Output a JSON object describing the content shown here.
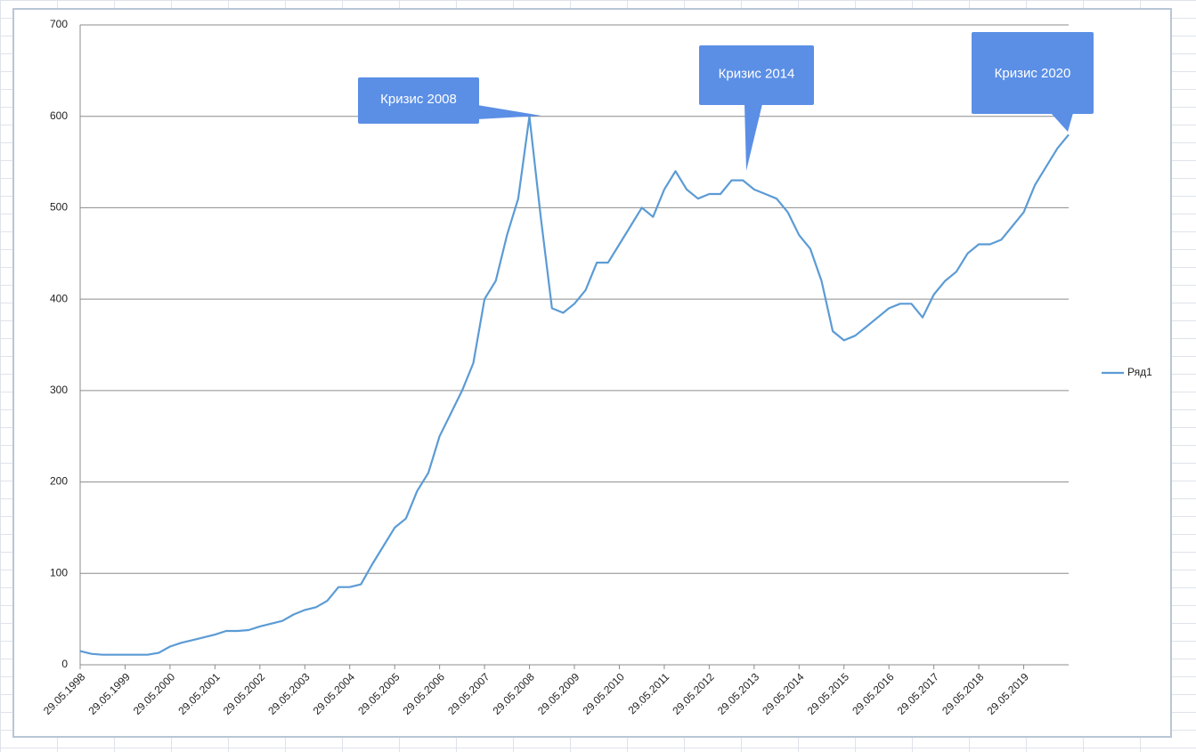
{
  "chart_data": {
    "type": "line",
    "categories": [
      "29.05.1998",
      null,
      null,
      null,
      "29.05.1999",
      null,
      null,
      null,
      "29.05.2000",
      null,
      null,
      null,
      "29.05.2001",
      null,
      null,
      null,
      "29.05.2002",
      null,
      null,
      null,
      "29.05.2003",
      null,
      null,
      null,
      "29.05.2004",
      null,
      null,
      null,
      "29.05.2005",
      null,
      null,
      null,
      "29.05.2006",
      null,
      null,
      null,
      "29.05.2007",
      null,
      null,
      null,
      "29.05.2008",
      null,
      null,
      null,
      "29.05.2009",
      null,
      null,
      null,
      "29.05.2010",
      null,
      null,
      null,
      "29.05.2011",
      null,
      null,
      null,
      "29.05.2012",
      null,
      null,
      null,
      "29.05.2013",
      null,
      null,
      null,
      "29.05.2014",
      null,
      null,
      null,
      "29.05.2015",
      null,
      null,
      null,
      "29.05.2016",
      null,
      null,
      null,
      "29.05.2017",
      null,
      null,
      null,
      "29.05.2018",
      null,
      null,
      null,
      "29.05.2019",
      null,
      null,
      null,
      null
    ],
    "series": [
      {
        "name": "Ряд1",
        "color": "#5b9bd5",
        "values": [
          15,
          12,
          11,
          11,
          11,
          11,
          11,
          13,
          20,
          24,
          27,
          30,
          33,
          37,
          37,
          38,
          42,
          45,
          48,
          55,
          60,
          63,
          70,
          85,
          85,
          88,
          110,
          130,
          150,
          160,
          190,
          210,
          250,
          275,
          300,
          330,
          400,
          420,
          470,
          510,
          600,
          490,
          390,
          385,
          395,
          410,
          440,
          440,
          460,
          480,
          500,
          490,
          520,
          540,
          520,
          510,
          515,
          515,
          530,
          530,
          520,
          515,
          510,
          495,
          470,
          455,
          420,
          365,
          355,
          360,
          370,
          380,
          390,
          395,
          395,
          380,
          405,
          420,
          430,
          450,
          460,
          460,
          465,
          480,
          495,
          525,
          545,
          565,
          580
        ]
      }
    ],
    "ylim": [
      0,
      700
    ],
    "yticks": [
      0,
      100,
      200,
      300,
      400,
      500,
      600,
      700
    ],
    "grid": true,
    "legend": "right",
    "annotations": [
      "Кризис 2008",
      "Кризис 2014",
      "Кризис 2020"
    ],
    "annotation_color": "#5b8fe6"
  }
}
